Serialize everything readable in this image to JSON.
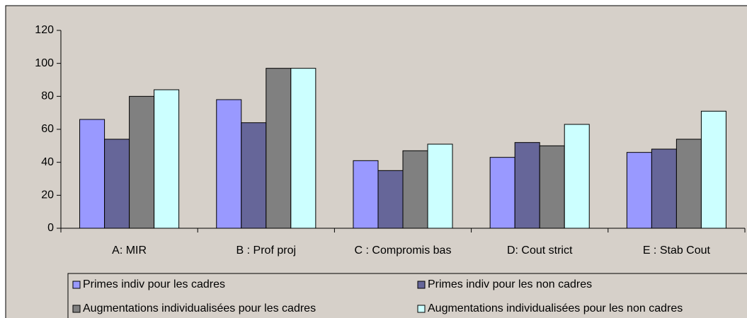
{
  "chart_data": {
    "type": "bar",
    "categories": [
      "A: MIR",
      "B : Prof proj",
      "C : Compromis bas",
      "D: Cout strict",
      "E : Stab Cout"
    ],
    "series": [
      {
        "name": "Primes indiv pour les cadres",
        "color": "#9999ff",
        "values": [
          66,
          78,
          41,
          43,
          46
        ]
      },
      {
        "name": "Primes indiv pour les non cadres",
        "color": "#666699",
        "values": [
          54,
          64,
          35,
          52,
          48
        ]
      },
      {
        "name": "Augmentations individualisées pour les cadres",
        "color": "#808080",
        "values": [
          80,
          97,
          47,
          50,
          54
        ]
      },
      {
        "name": "Augmentations individualisées pour les non cadres",
        "color": "#ccffff",
        "values": [
          84,
          97,
          51,
          63,
          71
        ]
      }
    ],
    "ylim": [
      0,
      120
    ],
    "yticks": [
      0,
      20,
      40,
      60,
      80,
      100,
      120
    ],
    "grid": false,
    "legend": "bottom"
  }
}
